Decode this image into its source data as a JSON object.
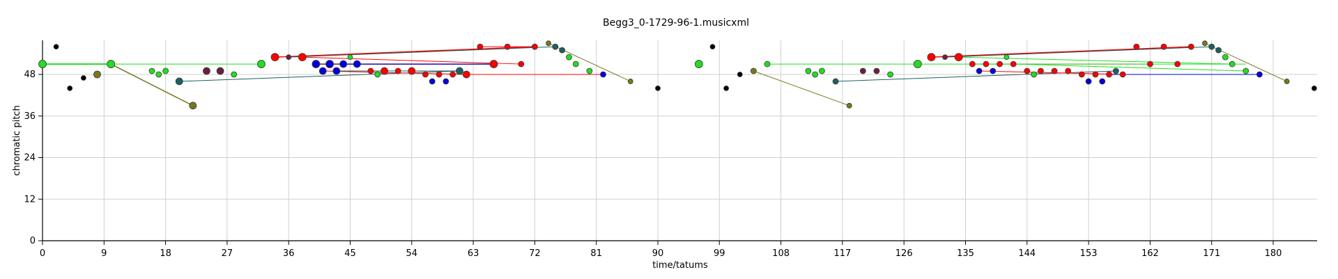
{
  "chart_data": {
    "type": "scatter",
    "title": "Begg3_0-1729-96-1.musicxml",
    "xlabel": "time/tatums",
    "ylabel": "chromatic pitch",
    "xlim": [
      0,
      186
    ],
    "ylim": [
      0,
      58
    ],
    "xticks": [
      0,
      9,
      18,
      27,
      36,
      45,
      54,
      63,
      72,
      81,
      90,
      99,
      108,
      117,
      126,
      135,
      144,
      153,
      162,
      171,
      180
    ],
    "yticks": [
      0,
      12,
      24,
      36,
      48
    ],
    "grid": true,
    "colors": {
      "k": "#000000",
      "r": "#ff0000",
      "b": "#0000dd",
      "g": "#22dd22",
      "o": "#77771f",
      "t": "#1f5f5f",
      "m": "#6b1f3f"
    },
    "points": [
      [
        2,
        56,
        "k",
        3.5
      ],
      [
        4,
        44,
        "k",
        3.5
      ],
      [
        6,
        47,
        "k",
        3.5
      ],
      [
        8,
        48,
        "o",
        5
      ],
      [
        10,
        51,
        "g",
        5.5
      ],
      [
        0,
        51,
        "g",
        5.5
      ],
      [
        16,
        49,
        "g",
        4
      ],
      [
        17,
        48,
        "g",
        4
      ],
      [
        18,
        49,
        "g",
        4
      ],
      [
        20,
        46,
        "t",
        5
      ],
      [
        22,
        39,
        "o",
        5
      ],
      [
        24,
        49,
        "m",
        5
      ],
      [
        26,
        49,
        "m",
        5
      ],
      [
        28,
        48,
        "g",
        4
      ],
      [
        32,
        51,
        "g",
        5.5
      ],
      [
        34,
        53,
        "r",
        5.5
      ],
      [
        36,
        53,
        "m",
        3.5
      ],
      [
        38,
        53,
        "r",
        5.5
      ],
      [
        40,
        51,
        "b",
        5.5
      ],
      [
        41,
        49,
        "b",
        5
      ],
      [
        42,
        51,
        "b",
        5.5
      ],
      [
        43,
        49,
        "b",
        5
      ],
      [
        44,
        51,
        "b",
        5
      ],
      [
        45,
        53,
        "g",
        3.5
      ],
      [
        46,
        51,
        "b",
        5
      ],
      [
        48,
        49,
        "r",
        4
      ],
      [
        49,
        48,
        "g",
        4
      ],
      [
        50,
        49,
        "r",
        5
      ],
      [
        52,
        49,
        "r",
        4
      ],
      [
        54,
        49,
        "r",
        5
      ],
      [
        56,
        48,
        "r",
        4
      ],
      [
        57,
        46,
        "b",
        4
      ],
      [
        58,
        48,
        "r",
        4
      ],
      [
        59,
        46,
        "b",
        4
      ],
      [
        60,
        48,
        "r",
        4
      ],
      [
        61,
        49,
        "t",
        5
      ],
      [
        62,
        48,
        "r",
        5
      ],
      [
        64,
        56,
        "r",
        4
      ],
      [
        66,
        51,
        "r",
        5.5
      ],
      [
        68,
        56,
        "r",
        4
      ],
      [
        70,
        51,
        "r",
        4
      ],
      [
        72,
        56,
        "r",
        4
      ],
      [
        74,
        57,
        "o",
        3.5
      ],
      [
        75,
        56,
        "t",
        4
      ],
      [
        76,
        55,
        "t",
        4
      ],
      [
        77,
        53,
        "g",
        4
      ],
      [
        78,
        51,
        "g",
        4
      ],
      [
        80,
        49,
        "g",
        4
      ],
      [
        82,
        48,
        "b",
        4
      ],
      [
        86,
        46,
        "o",
        3.5
      ],
      [
        90,
        44,
        "k",
        3.5
      ],
      [
        96,
        51,
        "g",
        5.5
      ],
      [
        98,
        56,
        "k",
        3.5
      ],
      [
        100,
        44,
        "k",
        3.5
      ],
      [
        102,
        48,
        "k",
        3.5
      ],
      [
        104,
        49,
        "o",
        4
      ],
      [
        106,
        51,
        "g",
        4
      ],
      [
        112,
        49,
        "g",
        4
      ],
      [
        113,
        48,
        "g",
        4
      ],
      [
        114,
        49,
        "g",
        4
      ],
      [
        116,
        46,
        "t",
        4
      ],
      [
        118,
        39,
        "o",
        3.5
      ],
      [
        120,
        49,
        "m",
        4
      ],
      [
        122,
        49,
        "m",
        4
      ],
      [
        124,
        48,
        "g",
        4
      ],
      [
        128,
        51,
        "g",
        5.5
      ],
      [
        130,
        53,
        "r",
        5.5
      ],
      [
        132,
        53,
        "m",
        3.5
      ],
      [
        134,
        53,
        "r",
        5.5
      ],
      [
        136,
        51,
        "r",
        4
      ],
      [
        137,
        49,
        "b",
        4
      ],
      [
        138,
        51,
        "r",
        4
      ],
      [
        139,
        49,
        "b",
        4
      ],
      [
        140,
        51,
        "r",
        4
      ],
      [
        141,
        53,
        "g",
        3.5
      ],
      [
        142,
        51,
        "r",
        4
      ],
      [
        144,
        49,
        "r",
        4
      ],
      [
        145,
        48,
        "g",
        4
      ],
      [
        146,
        49,
        "r",
        4
      ],
      [
        148,
        49,
        "r",
        4
      ],
      [
        150,
        49,
        "r",
        4
      ],
      [
        152,
        48,
        "r",
        4
      ],
      [
        153,
        46,
        "b",
        4
      ],
      [
        154,
        48,
        "r",
        4
      ],
      [
        155,
        46,
        "b",
        4
      ],
      [
        156,
        48,
        "r",
        4
      ],
      [
        157,
        49,
        "t",
        4
      ],
      [
        158,
        48,
        "r",
        4
      ],
      [
        160,
        56,
        "r",
        4
      ],
      [
        162,
        51,
        "r",
        4
      ],
      [
        164,
        56,
        "r",
        4
      ],
      [
        166,
        51,
        "r",
        4
      ],
      [
        168,
        56,
        "r",
        4
      ],
      [
        170,
        57,
        "o",
        3.5
      ],
      [
        171,
        56,
        "t",
        4
      ],
      [
        172,
        55,
        "t",
        4
      ],
      [
        173,
        53,
        "g",
        4
      ],
      [
        174,
        51,
        "g",
        4
      ],
      [
        176,
        49,
        "g",
        4
      ],
      [
        178,
        48,
        "b",
        4
      ],
      [
        182,
        46,
        "o",
        3.5
      ],
      [
        186,
        44,
        "k",
        3.5
      ]
    ],
    "connections": [
      [
        0,
        51,
        10,
        51,
        "g",
        2
      ],
      [
        10,
        51,
        22,
        39,
        "o",
        1.5
      ],
      [
        0,
        51,
        32,
        51,
        "g",
        1
      ],
      [
        20,
        46,
        61,
        49,
        "t",
        1
      ],
      [
        34,
        53,
        72,
        56,
        "r",
        1.5
      ],
      [
        36,
        53,
        75,
        56,
        "t",
        1
      ],
      [
        38,
        53,
        70,
        51,
        "r",
        1
      ],
      [
        40,
        51,
        66,
        51,
        "m",
        1.5
      ],
      [
        41,
        49,
        62,
        48,
        "r",
        1
      ],
      [
        43,
        49,
        61,
        49,
        "t",
        1
      ],
      [
        44,
        51,
        66,
        51,
        "b",
        1
      ],
      [
        74,
        57,
        86,
        46,
        "o",
        1
      ],
      [
        62,
        48,
        82,
        48,
        "r",
        1
      ],
      [
        64,
        56,
        72,
        56,
        "r",
        1
      ],
      [
        104,
        49,
        118,
        39,
        "o",
        1
      ],
      [
        106,
        51,
        128,
        51,
        "g",
        1
      ],
      [
        116,
        46,
        157,
        49,
        "t",
        1
      ],
      [
        130,
        53,
        168,
        56,
        "r",
        1.5
      ],
      [
        132,
        53,
        171,
        56,
        "t",
        1
      ],
      [
        134,
        53,
        174,
        51,
        "g",
        1
      ],
      [
        136,
        51,
        162,
        51,
        "r",
        1
      ],
      [
        137,
        49,
        158,
        48,
        "r",
        1
      ],
      [
        142,
        51,
        176,
        49,
        "g",
        1
      ],
      [
        156,
        48,
        178,
        48,
        "b",
        1
      ],
      [
        170,
        57,
        182,
        46,
        "o",
        1
      ],
      [
        128,
        51,
        176,
        51,
        "g",
        1
      ]
    ]
  }
}
